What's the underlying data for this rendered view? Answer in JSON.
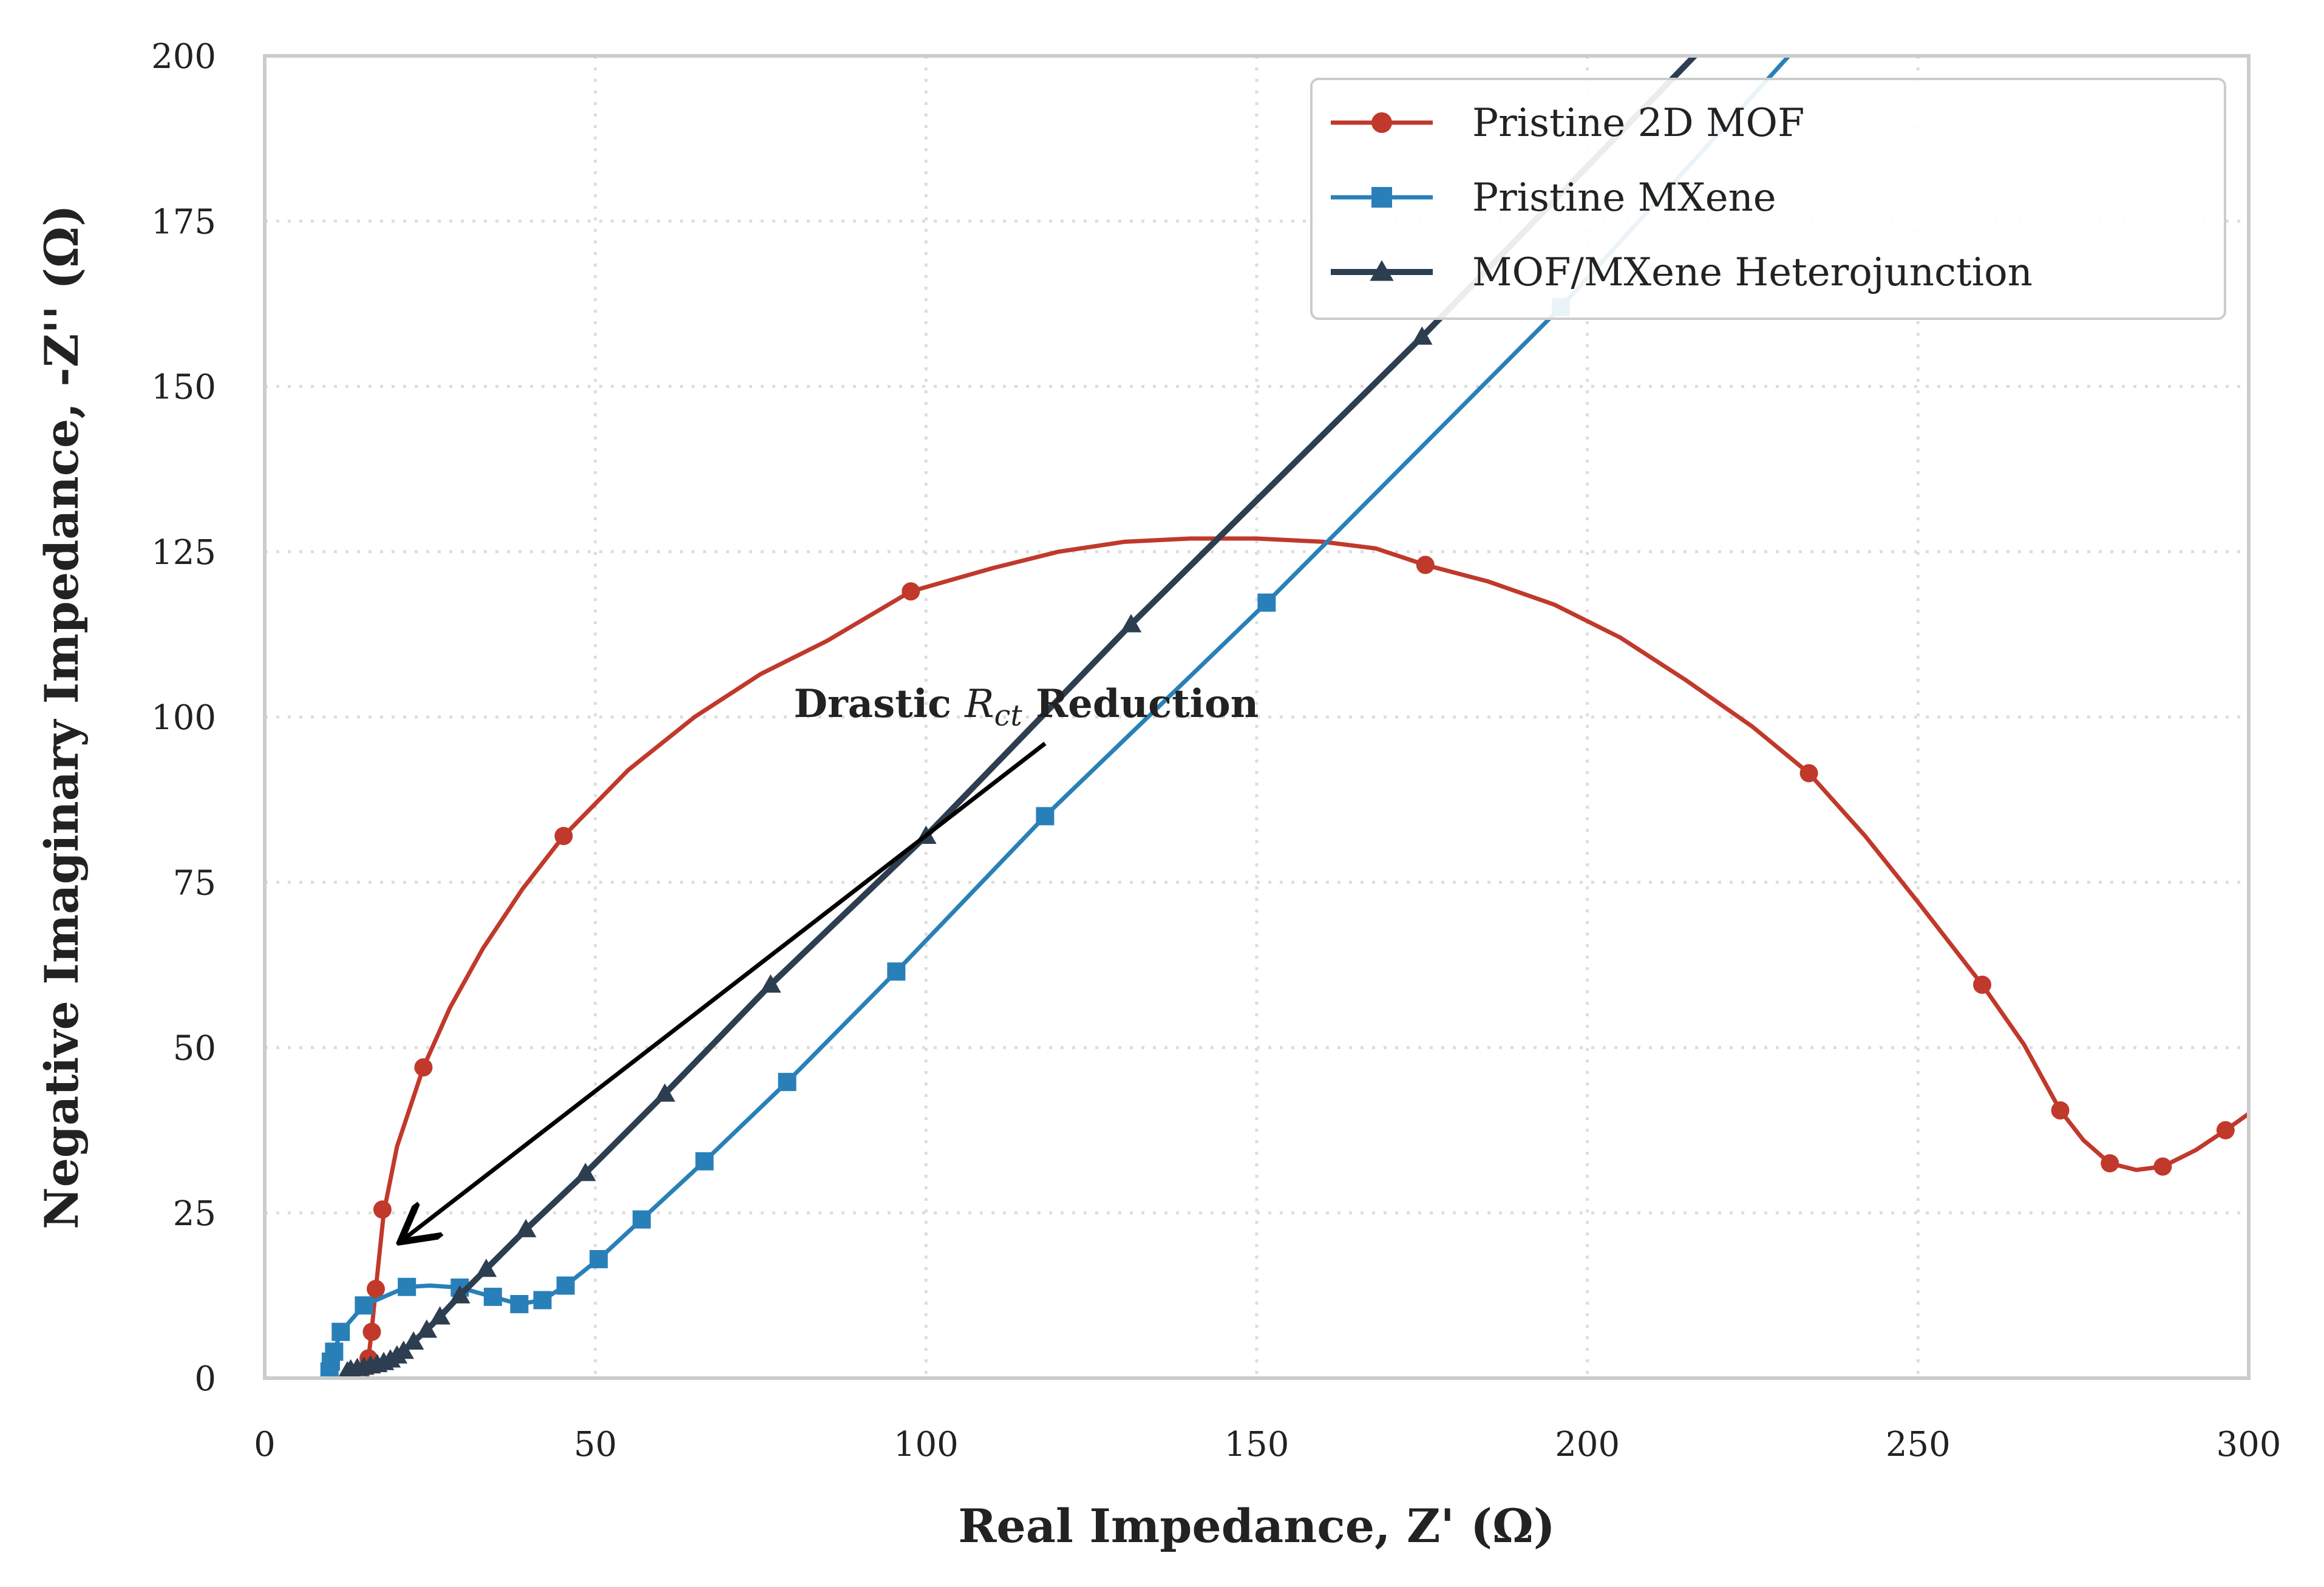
{
  "chart_data": {
    "type": "line",
    "xlabel": "Real Impedance, Z' (Ω)",
    "ylabel": "Negative Imaginary Impedance, -Z'' (Ω)",
    "xlim": [
      0,
      300
    ],
    "ylim": [
      0,
      200
    ],
    "x_ticks": [
      "0",
      "50",
      "100",
      "150",
      "200",
      "250",
      "300"
    ],
    "y_ticks": [
      "0",
      "25",
      "50",
      "75",
      "100",
      "125",
      "150",
      "175",
      "200"
    ],
    "grid": true,
    "legend_position": "top-right",
    "series": [
      {
        "name": "Pristine 2D MOF",
        "color": "#c0392b",
        "marker": "circle",
        "line_points": [
          [
            15.5,
            0
          ],
          [
            15.7,
            3
          ],
          [
            16.2,
            7.5
          ],
          [
            16.8,
            13.5
          ],
          [
            18,
            25
          ],
          [
            20,
            35
          ],
          [
            24,
            47
          ],
          [
            28,
            56
          ],
          [
            33,
            65
          ],
          [
            39,
            74
          ],
          [
            45.2,
            82
          ],
          [
            55,
            92
          ],
          [
            65,
            100
          ],
          [
            75,
            106.5
          ],
          [
            85,
            111.5
          ],
          [
            97.7,
            119
          ],
          [
            110,
            122.5
          ],
          [
            120,
            125
          ],
          [
            130,
            126.5
          ],
          [
            140,
            127
          ],
          [
            150,
            127
          ],
          [
            160,
            126.5
          ],
          [
            168,
            125.5
          ],
          [
            175.5,
            123
          ],
          [
            185,
            120.5
          ],
          [
            195,
            117
          ],
          [
            205,
            112
          ],
          [
            215,
            105.5
          ],
          [
            225,
            98.5
          ],
          [
            233.5,
            91.5
          ],
          [
            242,
            82
          ],
          [
            250,
            72
          ],
          [
            259.7,
            59.5
          ],
          [
            266,
            50.5
          ],
          [
            271.5,
            40.5
          ],
          [
            275,
            36
          ],
          [
            279,
            32.5
          ],
          [
            283,
            31.5
          ],
          [
            287,
            32
          ],
          [
            292,
            34.5
          ],
          [
            296.5,
            37.5
          ],
          [
            300,
            40
          ]
        ],
        "marker_points": [
          [
            15.7,
            3
          ],
          [
            16.2,
            7
          ],
          [
            16.8,
            13.5
          ],
          [
            17.8,
            25.5
          ],
          [
            24,
            47
          ],
          [
            45.2,
            82
          ],
          [
            97.7,
            119
          ],
          [
            175.5,
            123
          ],
          [
            233.5,
            91.5
          ],
          [
            259.7,
            59.5
          ],
          [
            271.5,
            40.5
          ],
          [
            279,
            32.5
          ],
          [
            287,
            32
          ],
          [
            296.5,
            37.5
          ]
        ]
      },
      {
        "name": "Pristine MXene",
        "color": "#2980b9",
        "marker": "square",
        "line_points": [
          [
            9.8,
            1
          ],
          [
            10,
            2.5
          ],
          [
            10.5,
            4
          ],
          [
            11.5,
            7
          ],
          [
            15,
            11
          ],
          [
            21.5,
            13.8
          ],
          [
            25,
            14
          ],
          [
            29.5,
            13.7
          ],
          [
            34.5,
            12.3
          ],
          [
            38.5,
            11.2
          ],
          [
            42,
            11.8
          ],
          [
            45.5,
            14
          ],
          [
            50.5,
            18
          ],
          [
            57,
            24
          ],
          [
            66.5,
            32.8
          ],
          [
            79,
            44.8
          ],
          [
            95.5,
            61.5
          ],
          [
            118,
            85
          ],
          [
            151.5,
            117.3
          ],
          [
            196,
            162
          ],
          [
            235,
            205
          ]
        ],
        "marker_points": [
          [
            9.8,
            1
          ],
          [
            10,
            2.5
          ],
          [
            10.5,
            4
          ],
          [
            11.5,
            7
          ],
          [
            15,
            11
          ],
          [
            21.5,
            13.8
          ],
          [
            29.5,
            13.7
          ],
          [
            34.5,
            12.3
          ],
          [
            38.5,
            11.2
          ],
          [
            42,
            11.8
          ],
          [
            45.5,
            14
          ],
          [
            50.5,
            18
          ],
          [
            57,
            24
          ],
          [
            66.5,
            32.8
          ],
          [
            79,
            44.8
          ],
          [
            95.5,
            61.5
          ],
          [
            118,
            85
          ],
          [
            151.5,
            117.3
          ],
          [
            196,
            162
          ]
        ]
      },
      {
        "name": "MOF/MXene Heterojunction",
        "color": "#2c3e50",
        "marker": "triangle",
        "line_points": [
          [
            12.5,
            1
          ],
          [
            13,
            1.3
          ],
          [
            14,
            1.5
          ],
          [
            15,
            1.7
          ],
          [
            16,
            1.9
          ],
          [
            17,
            2.1
          ],
          [
            18,
            2.4
          ],
          [
            19,
            2.8
          ],
          [
            20,
            3.4
          ],
          [
            21,
            4.1
          ],
          [
            22.5,
            5.5
          ],
          [
            24.5,
            7.3
          ],
          [
            26.5,
            9.3
          ],
          [
            29.5,
            12.5
          ],
          [
            33.5,
            16.5
          ],
          [
            39.5,
            22.5
          ],
          [
            48.5,
            31
          ],
          [
            60.5,
            43
          ],
          [
            76.5,
            59.5
          ],
          [
            100,
            82
          ],
          [
            131,
            114
          ],
          [
            175,
            157.5
          ],
          [
            223,
            207
          ]
        ],
        "marker_points": [
          [
            12.5,
            1
          ],
          [
            13,
            1.3
          ],
          [
            14,
            1.5
          ],
          [
            15,
            1.7
          ],
          [
            16,
            1.9
          ],
          [
            17,
            2.1
          ],
          [
            18,
            2.4
          ],
          [
            19,
            2.8
          ],
          [
            20,
            3.4
          ],
          [
            21,
            4.1
          ],
          [
            22.5,
            5.5
          ],
          [
            24.5,
            7.3
          ],
          [
            26.5,
            9.3
          ],
          [
            29.5,
            12.5
          ],
          [
            33.5,
            16.5
          ],
          [
            39.5,
            22.5
          ],
          [
            48.5,
            31
          ],
          [
            60.5,
            43
          ],
          [
            76.5,
            59.5
          ],
          [
            100,
            82
          ],
          [
            131,
            114
          ],
          [
            175,
            157.5
          ]
        ]
      }
    ],
    "annotation": {
      "prefix": "Drastic ",
      "symbol": "R",
      "subscript": "ct",
      "suffix": " Reduction",
      "text_anchor": [
        80,
        100
      ],
      "arrow_from": [
        118,
        96
      ],
      "arrow_to": [
        21,
        21
      ]
    }
  }
}
